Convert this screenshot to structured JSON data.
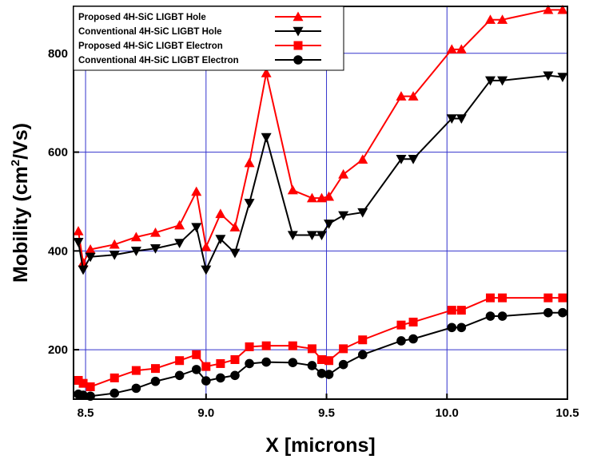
{
  "chart_data": {
    "type": "line",
    "title": "",
    "xlabel": "X [microns]",
    "ylabel_main": "Mobility (cm",
    "ylabel_sup": "2",
    "ylabel_end": "/Vs)",
    "xlim": [
      8.45,
      10.5
    ],
    "ylim": [
      100,
      895
    ],
    "xticks": [
      8.5,
      9.0,
      9.5,
      10.0,
      10.5
    ],
    "xtick_labels": [
      "8.5",
      "9.0",
      "9.5",
      "10.0",
      "10.5"
    ],
    "yticks": [
      200,
      400,
      600,
      800
    ],
    "ytick_labels": [
      "200",
      "400",
      "600",
      "800"
    ],
    "grid": true,
    "grid_color": "#3333cc",
    "legend_position": "top-left",
    "series": [
      {
        "name": "Proposed  4H-SiC LIGBT Hole",
        "color": "#ff0000",
        "marker": "triangle-up",
        "x": [
          8.47,
          8.49,
          8.52,
          8.62,
          8.71,
          8.79,
          8.89,
          8.96,
          9.0,
          9.06,
          9.12,
          9.18,
          9.25,
          9.36,
          9.44,
          9.48,
          9.51,
          9.57,
          9.65,
          9.81,
          9.86,
          10.02,
          10.06,
          10.18,
          10.23,
          10.42,
          10.48
        ],
        "y": [
          440,
          376,
          403,
          413,
          428,
          437,
          452,
          520,
          408,
          475,
          448,
          578,
          760,
          523,
          507,
          507,
          510,
          555,
          585,
          713,
          713,
          808,
          808,
          868,
          868,
          888,
          888
        ]
      },
      {
        "name": "Conventional  4H-SiC LIGBT Hole",
        "color": "#000000",
        "marker": "triangle-down",
        "x": [
          8.47,
          8.49,
          8.52,
          8.62,
          8.71,
          8.79,
          8.89,
          8.96,
          9.0,
          9.06,
          9.12,
          9.18,
          9.25,
          9.36,
          9.44,
          9.48,
          9.51,
          9.57,
          9.65,
          9.81,
          9.86,
          10.02,
          10.06,
          10.18,
          10.23,
          10.42,
          10.48
        ],
        "y": [
          418,
          362,
          388,
          392,
          400,
          405,
          416,
          448,
          362,
          424,
          396,
          497,
          630,
          432,
          432,
          432,
          455,
          472,
          478,
          586,
          586,
          668,
          668,
          745,
          745,
          755,
          752
        ]
      },
      {
        "name": "Proposed  4H-SiC LIGBT Electron",
        "color": "#ff0000",
        "marker": "square",
        "x": [
          8.47,
          8.49,
          8.52,
          8.62,
          8.71,
          8.79,
          8.89,
          8.96,
          9.0,
          9.06,
          9.12,
          9.18,
          9.25,
          9.36,
          9.44,
          9.48,
          9.51,
          9.57,
          9.65,
          9.81,
          9.86,
          10.02,
          10.06,
          10.18,
          10.23,
          10.42,
          10.48
        ],
        "y": [
          138,
          132,
          125,
          143,
          158,
          162,
          178,
          190,
          166,
          172,
          180,
          206,
          208,
          208,
          202,
          180,
          178,
          202,
          220,
          250,
          256,
          280,
          280,
          305,
          305,
          305,
          305
        ]
      },
      {
        "name": "Conventional  4H-SiC LIGBT Electron",
        "color": "#000000",
        "marker": "circle",
        "x": [
          8.47,
          8.49,
          8.52,
          8.62,
          8.71,
          8.79,
          8.89,
          8.96,
          9.0,
          9.06,
          9.12,
          9.18,
          9.25,
          9.36,
          9.44,
          9.48,
          9.51,
          9.57,
          9.65,
          9.81,
          9.86,
          10.02,
          10.06,
          10.18,
          10.23,
          10.42,
          10.48
        ],
        "y": [
          110,
          108,
          106,
          112,
          122,
          136,
          148,
          160,
          137,
          143,
          148,
          172,
          175,
          174,
          168,
          152,
          150,
          170,
          190,
          218,
          222,
          245,
          245,
          268,
          268,
          275,
          275
        ]
      }
    ]
  }
}
